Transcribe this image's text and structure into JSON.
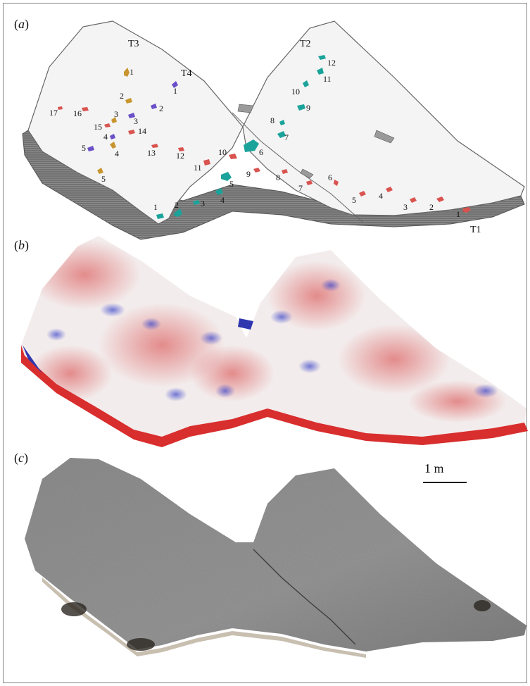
{
  "panels": [
    {
      "label_prefix": "(",
      "label_letter": "a",
      "label_suffix": ")"
    },
    {
      "label_prefix": "(",
      "label_letter": "b",
      "label_suffix": ")"
    },
    {
      "label_prefix": "(",
      "label_letter": "c",
      "label_suffix": ")"
    }
  ],
  "trackways": [
    {
      "name": "T1",
      "color": "#d9534f",
      "print_labels": [
        "1",
        "2",
        "3",
        "4",
        "5",
        "6",
        "7",
        "8",
        "9",
        "10",
        "11",
        "12",
        "13",
        "14",
        "15",
        "16",
        "17"
      ]
    },
    {
      "name": "T2",
      "color": "#1aa39a",
      "print_labels": [
        "1",
        "2",
        "3",
        "4",
        "5",
        "6",
        "7",
        "8",
        "9",
        "10",
        "11",
        "12"
      ]
    },
    {
      "name": "T3",
      "color": "#c8962e",
      "print_labels": [
        "1",
        "2",
        "3",
        "4",
        "5"
      ]
    },
    {
      "name": "T4",
      "color": "#6a4fc8",
      "print_labels": [
        "1",
        "2",
        "3",
        "4",
        "5"
      ]
    }
  ],
  "scale_bar": {
    "label": "1 m"
  },
  "colors": {
    "surface": "#f2f2f2",
    "edge": "#7d7d7d",
    "heat_high": "#d63c3c",
    "heat_low": "#3a44c8",
    "photo": "#8f8f8f"
  }
}
